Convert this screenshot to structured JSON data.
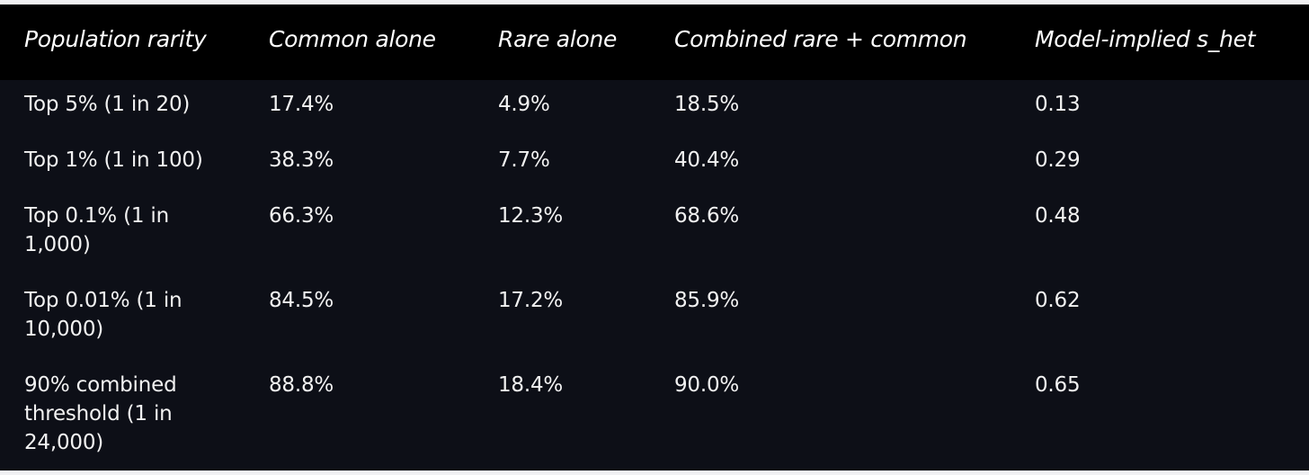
{
  "table": {
    "headers": [
      "Population rarity",
      "Common alone",
      "Rare alone",
      "Combined rare + common",
      "Model-implied s_het"
    ],
    "rows": [
      {
        "rarity": "Top 5% (1 in 20)",
        "common": "17.4%",
        "rare": "4.9%",
        "combined": "18.5%",
        "shet": "0.13"
      },
      {
        "rarity": "Top 1% (1 in 100)",
        "common": "38.3%",
        "rare": "7.7%",
        "combined": "40.4%",
        "shet": "0.29"
      },
      {
        "rarity": "Top 0.1% (1 in 1,000)",
        "common": "66.3%",
        "rare": "12.3%",
        "combined": "68.6%",
        "shet": "0.48"
      },
      {
        "rarity": "Top 0.01% (1 in 10,000)",
        "common": "84.5%",
        "rare": "17.2%",
        "combined": "85.9%",
        "shet": "0.62"
      },
      {
        "rarity": "90% combined threshold (1 in 24,000)",
        "common": "88.8%",
        "rare": "18.4%",
        "combined": "90.0%",
        "shet": "0.65"
      }
    ]
  }
}
